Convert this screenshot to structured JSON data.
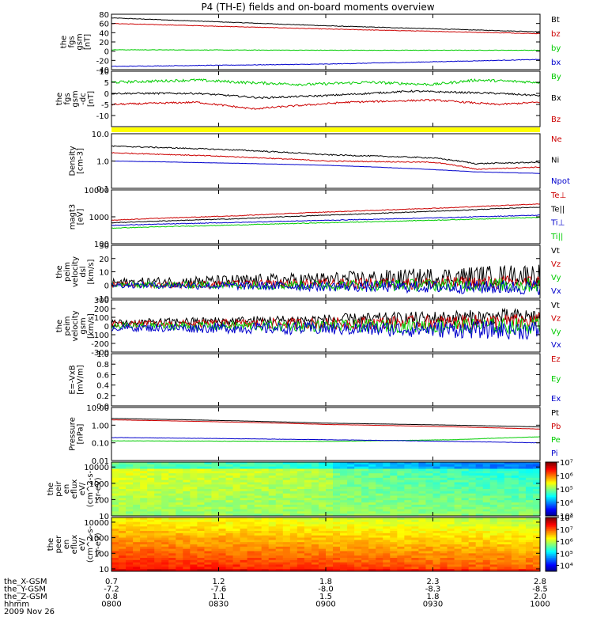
{
  "title": "P4 (TH-E) fields and on-board moments overview",
  "panels": [
    {
      "id": "fgs-gsm",
      "ylabel": [
        "the",
        "fgs",
        "gsm",
        "[nT]"
      ],
      "ylim": [
        -40,
        80
      ],
      "ticks": [
        "80",
        "60",
        "40",
        "20",
        "0",
        "-20",
        "-40"
      ],
      "tickvals": [
        80,
        60,
        40,
        20,
        0,
        -20,
        -40
      ],
      "log": false,
      "series": [
        {
          "name": "Bt",
          "color": "#000000",
          "t": [
            0,
            0.5,
            1
          ],
          "y": [
            72,
            55,
            42
          ],
          "noise": 0.6
        },
        {
          "name": "bz",
          "color": "#cc0000",
          "t": [
            0,
            0.5,
            1
          ],
          "y": [
            60,
            48,
            38
          ],
          "noise": 0.6
        },
        {
          "name": "by",
          "color": "#00cc00",
          "t": [
            0,
            0.5,
            1
          ],
          "y": [
            3,
            2,
            2
          ],
          "noise": 0.5
        },
        {
          "name": "bx",
          "color": "#0000cc",
          "t": [
            0,
            0.5,
            1
          ],
          "y": [
            -33,
            -28,
            -18
          ],
          "noise": 0.6
        }
      ]
    },
    {
      "id": "fgs-gsm-dc",
      "ylabel": [
        "the",
        "fgs",
        "gsm",
        "-dc",
        "[nT]"
      ],
      "ylim": [
        -15,
        10
      ],
      "ticks": [
        "10",
        "5",
        "0",
        "-5",
        "-10"
      ],
      "tickvals": [
        10,
        5,
        0,
        -5,
        -10
      ],
      "log": false,
      "series": [
        {
          "name": "By",
          "color": "#00cc00",
          "t": [
            0,
            0.2,
            0.3,
            0.45,
            0.6,
            0.75,
            0.85,
            1
          ],
          "y": [
            5,
            6,
            5,
            4,
            5,
            4,
            6,
            5
          ],
          "noise": 0.6
        },
        {
          "name": "Bx",
          "color": "#000000",
          "t": [
            0,
            0.2,
            0.35,
            0.5,
            0.7,
            0.9,
            1
          ],
          "y": [
            0,
            0,
            -2,
            -1,
            1,
            0,
            -1
          ],
          "noise": 0.4
        },
        {
          "name": "Bz",
          "color": "#cc0000",
          "t": [
            0,
            0.2,
            0.33,
            0.4,
            0.55,
            0.75,
            0.9,
            1
          ],
          "y": [
            -5,
            -4,
            -7,
            -6,
            -4,
            -3,
            -5,
            -4
          ],
          "noise": 0.4
        }
      ]
    },
    {
      "id": "density",
      "ylabel": [
        "Density",
        "[cm-3]"
      ],
      "ylim": [
        0.1,
        10
      ],
      "ticks": [
        "10.0",
        "1.0",
        "0.1"
      ],
      "tickvals": [
        10,
        1,
        0.1
      ],
      "log": true,
      "series": [
        {
          "name": "Ne",
          "color": "#cc0000",
          "t": [
            0,
            0.3,
            0.5,
            0.75,
            0.85,
            1
          ],
          "y": [
            2.0,
            1.4,
            1.0,
            0.9,
            0.5,
            0.6
          ],
          "noise": 0.04
        },
        {
          "name": "Ni",
          "color": "#000000",
          "t": [
            0,
            0.3,
            0.5,
            0.75,
            0.85,
            1
          ],
          "y": [
            3.5,
            2.5,
            1.7,
            1.3,
            0.8,
            0.9
          ],
          "noise": 0.05
        },
        {
          "name": "Npot",
          "color": "#0000cc",
          "t": [
            0,
            0.5,
            0.85,
            1
          ],
          "y": [
            1.0,
            0.7,
            0.4,
            0.35
          ],
          "noise": 0.01
        }
      ]
    },
    {
      "id": "temperature",
      "ylabel": [
        "magt3",
        "[eV]"
      ],
      "ylim": [
        100,
        10000
      ],
      "ticks": [
        "10000",
        "1000",
        "100"
      ],
      "tickvals": [
        10000,
        1000,
        100
      ],
      "log": true,
      "series": [
        {
          "name": "Te⊥",
          "color": "#cc0000",
          "t": [
            0,
            0.3,
            0.6,
            0.8,
            1
          ],
          "y": [
            750,
            1100,
            1700,
            2200,
            3000
          ],
          "noise": 0.03
        },
        {
          "name": "Te||",
          "color": "#000000",
          "t": [
            0,
            0.3,
            0.6,
            0.8,
            1
          ],
          "y": [
            600,
            850,
            1300,
            1700,
            2300
          ],
          "noise": 0.03
        },
        {
          "name": "Ti⊥",
          "color": "#0000cc",
          "t": [
            0,
            0.3,
            0.6,
            0.8,
            1
          ],
          "y": [
            480,
            620,
            800,
            950,
            1150
          ],
          "noise": 0.03
        },
        {
          "name": "Ti||",
          "color": "#00cc00",
          "t": [
            0,
            0.3,
            0.6,
            0.8,
            1
          ],
          "y": [
            380,
            500,
            650,
            780,
            950
          ],
          "noise": 0.03
        }
      ]
    },
    {
      "id": "peim-velocity-dsl",
      "ylabel": [
        "the",
        "peim",
        "velocity",
        "dsl",
        "[km/s]"
      ],
      "ylim": [
        -10,
        30
      ],
      "ticks": [
        "30",
        "20",
        "10",
        "0",
        "-10"
      ],
      "tickvals": [
        30,
        20,
        10,
        0,
        -10
      ],
      "log": false,
      "series": [
        {
          "name": "Vt",
          "color": "#000000",
          "t": [
            0,
            0.5,
            1
          ],
          "y": [
            2,
            4,
            8
          ],
          "noise": 3
        },
        {
          "name": "Vz",
          "color": "#cc0000",
          "t": [
            0,
            0.5,
            1
          ],
          "y": [
            0,
            1,
            2
          ],
          "noise": 2
        },
        {
          "name": "Vy",
          "color": "#00cc00",
          "t": [
            0,
            0.5,
            1
          ],
          "y": [
            0,
            0,
            0
          ],
          "noise": 2
        },
        {
          "name": "Vx",
          "color": "#0000cc",
          "t": [
            0,
            0.5,
            1
          ],
          "y": [
            0,
            -1,
            -2
          ],
          "noise": 2
        }
      ]
    },
    {
      "id": "peim-velocity-gsm",
      "ylabel": [
        "the",
        "peim",
        "velocity",
        "gsm",
        "[km/s]"
      ],
      "ylim": [
        -300,
        300
      ],
      "ticks": [
        "300",
        "200",
        "100",
        "0",
        "-100",
        "-200",
        "-300"
      ],
      "tickvals": [
        300,
        200,
        100,
        0,
        -100,
        -200,
        -300
      ],
      "log": false,
      "series": [
        {
          "name": "Vt",
          "color": "#000000",
          "t": [
            0,
            0.5,
            1
          ],
          "y": [
            40,
            70,
            110
          ],
          "noise": 35
        },
        {
          "name": "Vz",
          "color": "#cc0000",
          "t": [
            0,
            0.5,
            1
          ],
          "y": [
            20,
            30,
            50
          ],
          "noise": 35
        },
        {
          "name": "Vy",
          "color": "#00cc00",
          "t": [
            0,
            0.5,
            1
          ],
          "y": [
            0,
            0,
            0
          ],
          "noise": 35
        },
        {
          "name": "Vx",
          "color": "#0000cc",
          "t": [
            0,
            0.5,
            1
          ],
          "y": [
            -20,
            -30,
            -50
          ],
          "noise": 40
        }
      ]
    },
    {
      "id": "e-vxb",
      "ylabel": [
        "E=-VxB",
        "[mV/m]"
      ],
      "ylim": [
        0,
        1
      ],
      "ticks": [
        "1.0",
        "0.8",
        "0.6",
        "0.4",
        "0.2",
        "0.0"
      ],
      "tickvals": [
        1,
        0.8,
        0.6,
        0.4,
        0.2,
        0
      ],
      "log": false,
      "series": [
        {
          "name": "Ez",
          "color": "#cc0000",
          "t": [],
          "y": [],
          "noise": 0
        },
        {
          "name": "Ey",
          "color": "#00cc00",
          "t": [],
          "y": [],
          "noise": 0
        },
        {
          "name": "Ex",
          "color": "#0000cc",
          "t": [],
          "y": [],
          "noise": 0
        }
      ]
    },
    {
      "id": "pressure",
      "ylabel": [
        "Pressure",
        "[nPa]"
      ],
      "ylim": [
        0.01,
        10
      ],
      "ticks": [
        "10.00",
        "1.00",
        "0.10",
        "0.01"
      ],
      "tickvals": [
        10,
        1,
        0.1,
        0.01
      ],
      "log": true,
      "series": [
        {
          "name": "Pt",
          "color": "#000000",
          "t": [
            0,
            0.5,
            1
          ],
          "y": [
            2.4,
            1.3,
            0.8
          ],
          "noise": 0.01
        },
        {
          "name": "Pb",
          "color": "#cc0000",
          "t": [
            0,
            0.5,
            1
          ],
          "y": [
            2.0,
            1.1,
            0.6
          ],
          "noise": 0.01
        },
        {
          "name": "Pe",
          "color": "#00cc00",
          "t": [
            0,
            0.5,
            0.8,
            1
          ],
          "y": [
            0.13,
            0.12,
            0.15,
            0.22
          ],
          "noise": 0.02
        },
        {
          "name": "Pi",
          "color": "#0000cc",
          "t": [
            0,
            0.5,
            1
          ],
          "y": [
            0.2,
            0.15,
            0.1
          ],
          "noise": 0.02
        }
      ]
    },
    {
      "id": "peir-en-eflux",
      "ylabel": [
        "the",
        "peir",
        "en",
        "eflux",
        "eV/",
        "(cm^2-s-",
        "sr-eV)"
      ],
      "ylim": [
        10,
        20000
      ],
      "ticks": [
        "10000",
        "1000",
        "100",
        "10"
      ],
      "tickvals": [
        10000,
        1000,
        100,
        10
      ],
      "log": true,
      "spectrogram": true,
      "colorbar": {
        "min": 3,
        "max": 7,
        "labels": [
          "10⁷",
          "10⁶",
          "10⁵",
          "10⁴",
          "10³"
        ],
        "labelexp": [
          7,
          6,
          5,
          4,
          3
        ]
      }
    },
    {
      "id": "peer-en-eflux",
      "ylabel": [
        "the",
        "peer",
        "en",
        "eflux",
        "eV/",
        "(cm^2-s-",
        "sr-eV)"
      ],
      "ylim": [
        7,
        20000
      ],
      "ticks": [
        "10000",
        "1000",
        "100",
        "10"
      ],
      "tickvals": [
        10000,
        1000,
        100,
        10
      ],
      "log": true,
      "spectrogram": true,
      "colorbar": {
        "min": 3.5,
        "max": 8,
        "labels": [
          "10⁸",
          "10⁷",
          "10⁶",
          "10⁵",
          "10⁴"
        ],
        "labelexp": [
          8,
          7,
          6,
          5,
          4
        ]
      }
    }
  ],
  "ephemeris": {
    "rows": [
      {
        "label": "the_X-GSM",
        "values": [
          "0.7",
          "1.2",
          "1.8",
          "2.3",
          "2.8"
        ]
      },
      {
        "label": "the_Y-GSM",
        "values": [
          "-7.2",
          "-7.6",
          "-8.0",
          "-8.3",
          "-8.5"
        ]
      },
      {
        "label": "the_Z-GSM",
        "values": [
          "0.8",
          "1.1",
          "1.5",
          "1.8",
          "2.0"
        ]
      },
      {
        "label": "hhmm",
        "values": [
          "0800",
          "0830",
          "0900",
          "0930",
          "1000"
        ]
      }
    ],
    "date": "2009 Nov 26"
  },
  "colors": {
    "flag": "#ffff00",
    "frame": "#000000"
  }
}
